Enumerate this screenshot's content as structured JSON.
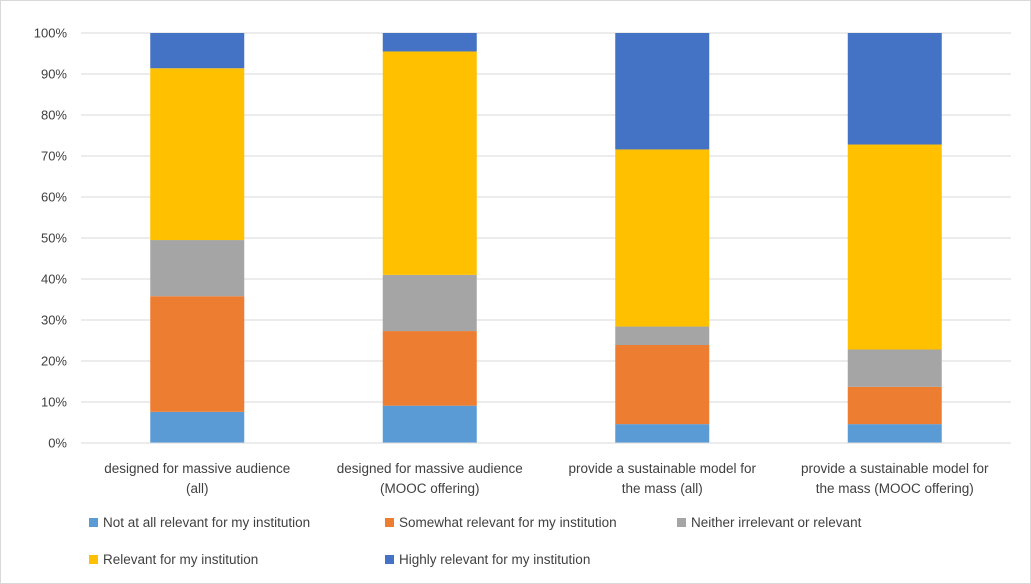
{
  "chart_data": {
    "type": "bar",
    "stacked": true,
    "normalized": true,
    "title": "",
    "xlabel": "",
    "ylabel": "",
    "ylim": [
      0,
      100
    ],
    "y_ticks": [
      "0%",
      "10%",
      "20%",
      "30%",
      "40%",
      "50%",
      "60%",
      "70%",
      "80%",
      "90%",
      "100%"
    ],
    "grid": true,
    "legend_position": "bottom",
    "categories": [
      [
        "designed for massive audience",
        "(all)"
      ],
      [
        "designed for massive audience",
        "(MOOC offering)"
      ],
      [
        "provide a sustainable model for",
        "the mass (all)"
      ],
      [
        "provide a sustainable model for",
        "the mass (MOOC offering)"
      ]
    ],
    "series": [
      {
        "name": "Not at all relevant for my institution",
        "color": "#5b9bd5",
        "values": [
          7.6,
          9.1,
          4.6,
          4.6
        ]
      },
      {
        "name": "Somewhat relevant for my institution",
        "color": "#ed7d31",
        "values": [
          28.2,
          18.2,
          19.3,
          9.1
        ]
      },
      {
        "name": "Neither irrelevant or relevant",
        "color": "#a5a5a5",
        "values": [
          13.7,
          13.7,
          4.5,
          9.1
        ]
      },
      {
        "name": "Relevant for my institution",
        "color": "#ffc000",
        "values": [
          41.9,
          54.5,
          43.2,
          50.0
        ]
      },
      {
        "name": "Highly relevant for my institution",
        "color": "#4472c4",
        "values": [
          8.6,
          4.5,
          28.4,
          27.2
        ]
      }
    ]
  }
}
